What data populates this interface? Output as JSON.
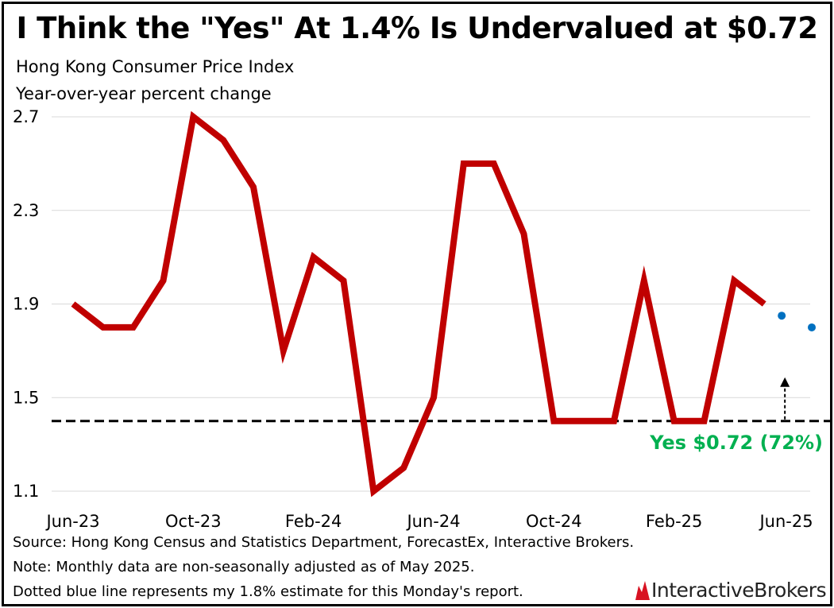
{
  "header": {
    "title": "I Think the \"Yes\" At 1.4% Is Undervalued at $0.72",
    "subtitle_line1": "Hong Kong Consumer Price Index",
    "subtitle_line2": "Year-over-year percent change"
  },
  "chart_data": {
    "type": "line",
    "x": [
      "Jun-23",
      "Jul-23",
      "Aug-23",
      "Sep-23",
      "Oct-23",
      "Nov-23",
      "Dec-23",
      "Jan-24",
      "Feb-24",
      "Mar-24",
      "Apr-24",
      "May-24",
      "Jun-24",
      "Jul-24",
      "Aug-24",
      "Sep-24",
      "Oct-24",
      "Nov-24",
      "Dec-24",
      "Jan-25",
      "Feb-25",
      "Mar-25",
      "Apr-25",
      "May-25",
      "Jun-25"
    ],
    "tick_labels": [
      "Jun-23",
      "Oct-23",
      "Feb-24",
      "Jun-24",
      "Oct-24",
      "Feb-25",
      "Jun-25"
    ],
    "yticks": [
      "2.7",
      "2.3",
      "1.9",
      "1.5",
      "1.1"
    ],
    "ylim": [
      1.1,
      2.7
    ],
    "grid": true,
    "series": [
      {
        "color": "#c00000",
        "style": "solid",
        "values": [
          1.9,
          1.8,
          1.8,
          2.0,
          2.7,
          2.6,
          2.4,
          1.7,
          2.1,
          2.0,
          1.1,
          1.2,
          1.5,
          2.5,
          2.5,
          2.2,
          1.4,
          1.4,
          1.4,
          2.0,
          1.4,
          1.4,
          2.0,
          1.9,
          null
        ]
      },
      {
        "color": "#0070c0",
        "style": "dotted",
        "points": [
          {
            "x": "May-25",
            "y": 1.85
          },
          {
            "x": "Jun-25",
            "y": 1.8
          }
        ]
      }
    ],
    "reference_line": {
      "y": 1.4,
      "color": "#000000",
      "style": "dashed"
    },
    "annotation": {
      "text": "Yes $0.72 (72%)",
      "color": "#00b050",
      "arrow_x": "May-25",
      "arrow_from_y": 1.4,
      "arrow_to_y": 1.58
    }
  },
  "footer": {
    "source": "Source: Hong Kong Census and Statistics Department, ForecastEx, Interactive Brokers.",
    "note": "Note: Monthly data are non-seasonally adjusted as of May 2025.",
    "dotted": "Dotted blue line represents my 1.8% estimate for this Monday's report."
  },
  "logo": {
    "text": "InteractiveBrokers",
    "color": "#d81222"
  }
}
